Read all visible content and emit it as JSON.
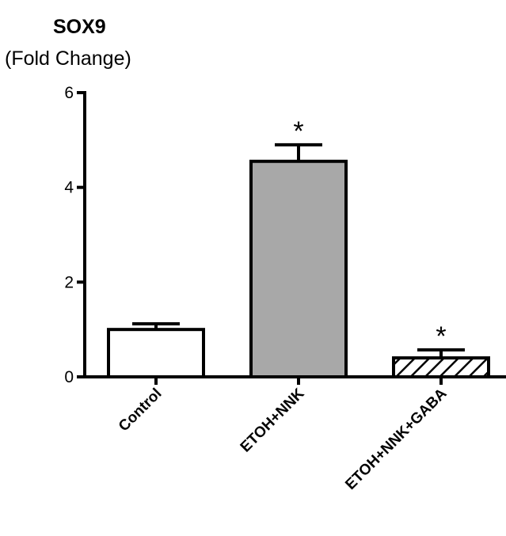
{
  "chart_data": {
    "type": "bar",
    "title": "SOX9",
    "subtitle": "(Fold Change)",
    "xlabel": "",
    "ylabel": "",
    "categories": [
      "Control",
      "ETOH+NNK",
      "ETOH+NNK+GABA"
    ],
    "values": [
      1.0,
      4.55,
      0.4
    ],
    "errors": [
      0.12,
      0.35,
      0.17
    ],
    "significance": [
      "",
      "*",
      "*"
    ],
    "bar_fills": [
      "white",
      "#a8a8a8",
      "hatched"
    ],
    "ylim": [
      0,
      6
    ],
    "yticks": [
      "0",
      "2",
      "4",
      "6"
    ],
    "grid": false,
    "legend": "none"
  }
}
